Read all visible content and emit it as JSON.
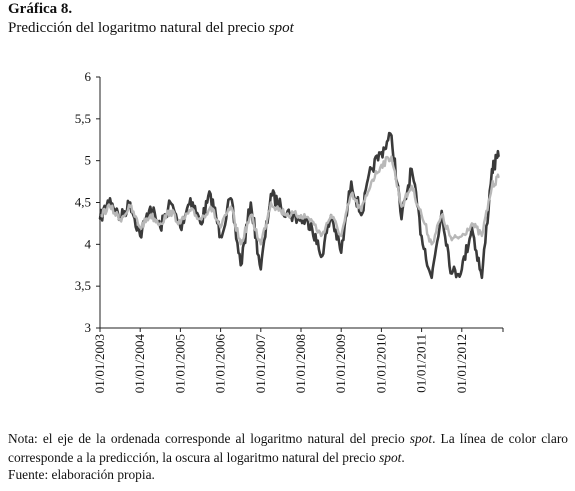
{
  "figure": {
    "label": "Gráfica 8.",
    "title_prefix": "Predicción del logaritmo natural del precio ",
    "title_italic": "spot"
  },
  "note": {
    "p1": "Nota: el eje de la ordenada corresponde al logaritmo natural del precio ",
    "i1": "spot",
    "p2": ". La línea de color claro corresponde a la predicción, la oscura al logaritmo natural del precio ",
    "i2": "spot",
    "p3": "."
  },
  "source": "Fuente: elaboración propia.",
  "chart_data": {
    "type": "line",
    "title": "",
    "xlabel": "",
    "ylabel": "",
    "ylim": [
      3,
      6
    ],
    "y_ticks": [
      3,
      3.5,
      4,
      4.5,
      5,
      5.5,
      6
    ],
    "y_tick_labels": [
      "3",
      "3,5",
      "4",
      "4,5",
      "5",
      "5,5",
      "6"
    ],
    "x_tick_labels": [
      "01/01/2003",
      "01/01/2004",
      "01/01/2005",
      "01/01/2006",
      "01/01/2007",
      "01/01/2008",
      "01/01/2009",
      "01/01/2010",
      "01/01/2011",
      "01/01/2012"
    ],
    "x_range": [
      "01/01/2003",
      "12/2012"
    ],
    "grid": false,
    "x": [
      "2003-01",
      "2003-04",
      "2003-07",
      "2003-10",
      "2004-01",
      "2004-04",
      "2004-07",
      "2004-10",
      "2005-01",
      "2005-04",
      "2005-07",
      "2005-10",
      "2006-01",
      "2006-04",
      "2006-07",
      "2006-10",
      "2007-01",
      "2007-04",
      "2007-07",
      "2007-10",
      "2008-01",
      "2008-04",
      "2008-07",
      "2008-10",
      "2009-01",
      "2009-04",
      "2009-07",
      "2009-10",
      "2010-01",
      "2010-04",
      "2010-07",
      "2010-10",
      "2011-01",
      "2011-04",
      "2011-07",
      "2011-10",
      "2012-01",
      "2012-04",
      "2012-07",
      "2012-10",
      "2012-12"
    ],
    "series": [
      {
        "color": "#3a3a3a",
        "values": [
          4.3,
          4.55,
          4.3,
          4.5,
          4.1,
          4.45,
          4.2,
          4.5,
          4.2,
          4.55,
          4.25,
          4.6,
          4.1,
          4.55,
          3.75,
          4.5,
          3.7,
          4.6,
          4.45,
          4.35,
          4.3,
          4.25,
          3.85,
          4.35,
          3.9,
          4.75,
          4.35,
          4.9,
          5.1,
          5.3,
          4.3,
          4.9,
          4.1,
          3.6,
          4.4,
          3.65,
          3.7,
          4.2,
          3.6,
          4.9,
          5.05
        ]
      },
      {
        "color": "#b8b8b8",
        "values": [
          4.35,
          4.45,
          4.3,
          4.45,
          4.2,
          4.35,
          4.25,
          4.4,
          4.25,
          4.4,
          4.3,
          4.45,
          4.2,
          4.45,
          4.0,
          4.35,
          4.0,
          4.5,
          4.4,
          4.35,
          4.35,
          4.3,
          4.1,
          4.35,
          4.1,
          4.6,
          4.4,
          4.75,
          4.95,
          5.05,
          4.45,
          4.7,
          4.35,
          4.0,
          4.35,
          4.05,
          4.1,
          4.25,
          4.1,
          4.7,
          4.8
        ]
      }
    ]
  }
}
